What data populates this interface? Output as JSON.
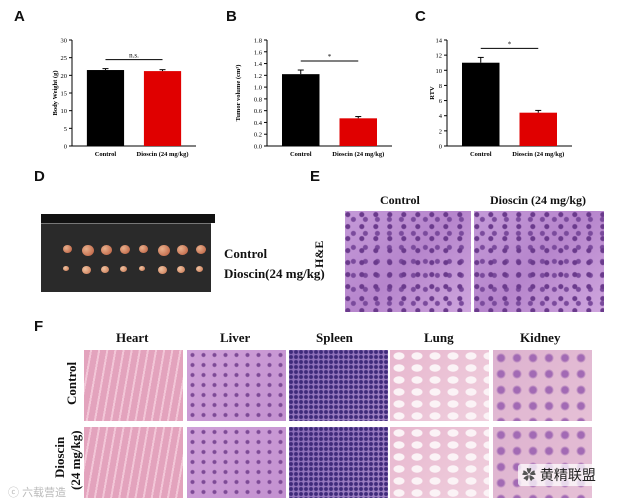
{
  "panels": {
    "a": "A",
    "b": "B",
    "c": "C",
    "d": "D",
    "e": "E",
    "f": "F"
  },
  "chart_data": [
    {
      "type": "bar",
      "categories": [
        "Control",
        "Dioscin (24 mg/kg)"
      ],
      "values": [
        21.5,
        21.2
      ],
      "errors": [
        0.4,
        0.4
      ],
      "colors": [
        "#000000",
        "#e00000"
      ],
      "ylabel": "Body Weight (g)",
      "ylim": [
        0,
        30
      ],
      "yticks": [
        "0",
        "5",
        "10",
        "15",
        "20",
        "25",
        "30"
      ],
      "annotation": "n.s."
    },
    {
      "type": "bar",
      "categories": [
        "Control",
        "Dioscin (24 mg/kg)"
      ],
      "values": [
        1.22,
        0.47
      ],
      "errors": [
        0.07,
        0.03
      ],
      "colors": [
        "#000000",
        "#e00000"
      ],
      "ylabel": "Tumor volume (cm³)",
      "ylim": [
        0,
        1.8
      ],
      "yticks": [
        "0.0",
        "0.2",
        "0.4",
        "0.6",
        "0.8",
        "1.0",
        "1.2",
        "1.4",
        "1.6",
        "1.8"
      ],
      "annotation": "*"
    },
    {
      "type": "bar",
      "categories": [
        "Control",
        "Dioscin (24 mg/kg)"
      ],
      "values": [
        11.0,
        4.4
      ],
      "errors": [
        0.7,
        0.3
      ],
      "colors": [
        "#000000",
        "#e00000"
      ],
      "ylabel": "RTV",
      "ylim": [
        0,
        14
      ],
      "yticks": [
        "0",
        "2",
        "4",
        "6",
        "8",
        "10",
        "12",
        "14"
      ],
      "annotation": "*"
    }
  ],
  "tumor_photo": {
    "row1_label": "Control",
    "row2_label": "Dioscin(24 mg/kg)",
    "row1_count": 8,
    "row2_count": 8
  },
  "he_panel": {
    "col1": "Control",
    "col2": "Dioscin (24 mg/kg)",
    "row": "H&E"
  },
  "organ_panel": {
    "columns": [
      "Heart",
      "Liver",
      "Spleen",
      "Lung",
      "Kidney"
    ],
    "rows": [
      "Control",
      "Dioscin\n(24 mg/kg)"
    ],
    "row_labels": [
      "Control",
      "Dioscin",
      "(24 mg/kg)"
    ]
  },
  "watermark": {
    "left": "六载营造",
    "right": "黄精联盟"
  },
  "colors": {
    "control": "#000000",
    "dioscin": "#e00000",
    "he_purple": "#a86cc0",
    "he_pink": "#e8a8c8"
  }
}
